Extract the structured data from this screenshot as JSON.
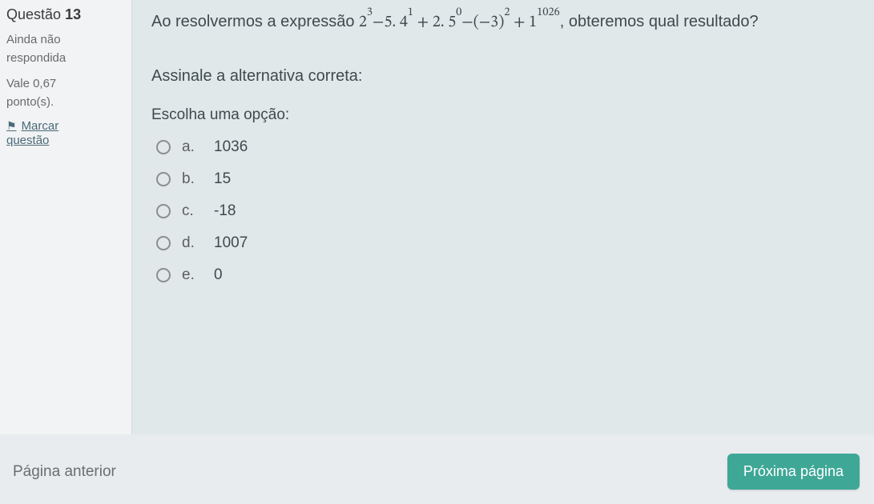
{
  "sidebar": {
    "question_label": "Questão",
    "question_number": "13",
    "status_line1": "Ainda não",
    "status_line2": "respondida",
    "points_line1": "Vale 0,67",
    "points_line2": "ponto(s).",
    "flag_line1": "Marcar",
    "flag_line2": "questão"
  },
  "main": {
    "stem_prefix": "Ao resolvermos a expressão ",
    "stem_suffix": ", obteremos qual resultado?",
    "expression": {
      "t1_base": "2",
      "t1_exp": "3",
      "t2_coef": "5",
      "t2_base": "4",
      "t2_exp": "1",
      "t3_coef": "2",
      "t3_base": "5",
      "t3_exp": "0",
      "t4_inner": "−3",
      "t4_exp": "2",
      "t5_base": "1",
      "t5_exp": "1026"
    },
    "prompt": "Assinale a alternativa correta:",
    "choose_label": "Escolha uma opção:",
    "options": [
      {
        "letter": "a.",
        "text": "1036"
      },
      {
        "letter": "b.",
        "text": "15"
      },
      {
        "letter": "c.",
        "text": "-18"
      },
      {
        "letter": "d.",
        "text": "1007"
      },
      {
        "letter": "e.",
        "text": "0"
      }
    ]
  },
  "footer": {
    "prev": "Página anterior",
    "next": "Próxima página"
  },
  "colors": {
    "page_bg": "#e8ecee",
    "main_bg": "#e1e8ea",
    "sidebar_bg": "#f2f3f4",
    "text": "#3f4a4d",
    "link": "#4a6a78",
    "next_btn_bg": "#3fa796",
    "radio_border": "#8a8f91"
  }
}
